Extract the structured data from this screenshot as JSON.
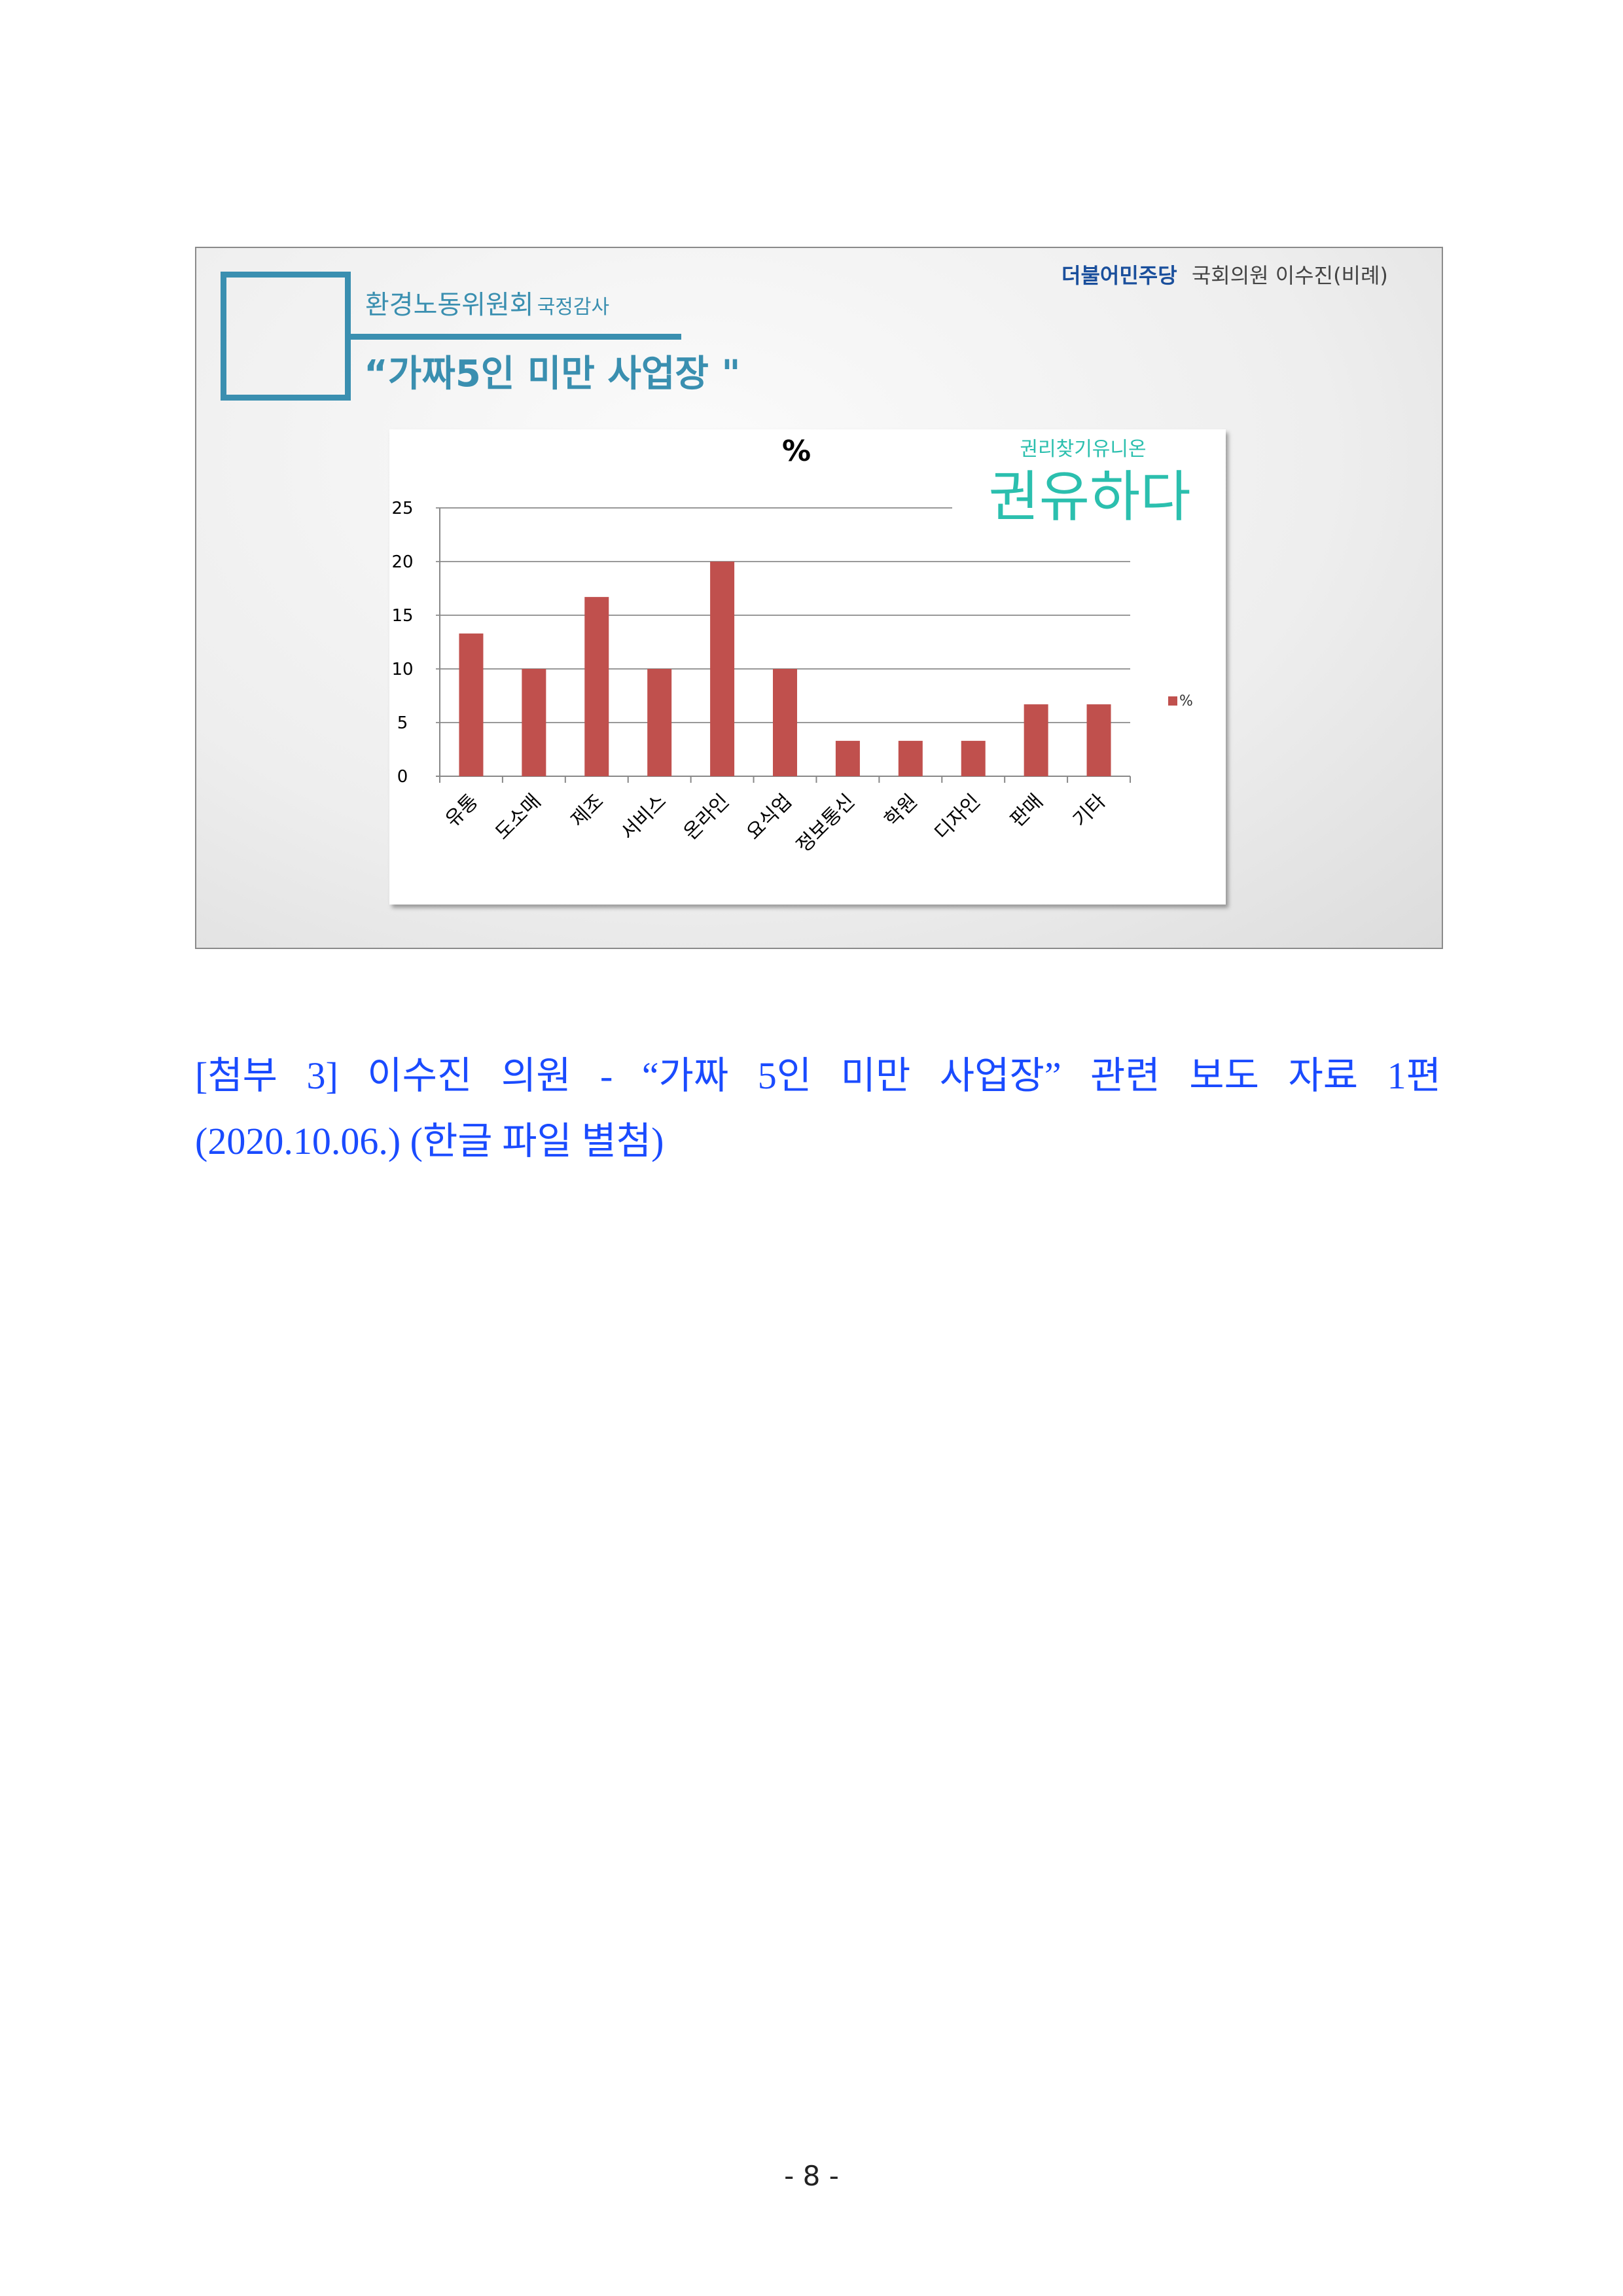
{
  "slide": {
    "header_party": "더불어민주당",
    "header_member": "국회의원 이수진(비례)",
    "subtitle_main": "환경노동위원회",
    "subtitle_small": "국정감사",
    "title": "“가짜5인 미만 사업장 \"",
    "logo_small": "권리찾기유니온",
    "logo_big": "권유하다",
    "colors": {
      "accent": "#3a8fb0",
      "bar": "#c0504d",
      "logo": "#2bbfae"
    }
  },
  "chart_data": {
    "type": "bar",
    "title": "%",
    "categories": [
      "유통",
      "도소매",
      "제조",
      "서비스",
      "온라인",
      "요식업",
      "정보통신",
      "학원",
      "디자인",
      "판매",
      "기타"
    ],
    "series": [
      {
        "name": "%",
        "values": [
          13.3,
          10,
          16.7,
          10,
          20,
          10,
          3.3,
          3.3,
          3.3,
          6.7,
          6.7
        ]
      }
    ],
    "ylim": [
      0,
      25
    ],
    "yticks": [
      "0",
      "5",
      "10",
      "15",
      "20",
      "25"
    ],
    "grid": true,
    "legend": "right"
  },
  "caption": {
    "line1": "[첨부 3] 이수진 의원 - “가짜 5인 미만 사업장” 관련 보도 자료 1편",
    "line2": "(2020.10.06.) (한글 파일 별첨)"
  },
  "page_number": "- 8 -"
}
